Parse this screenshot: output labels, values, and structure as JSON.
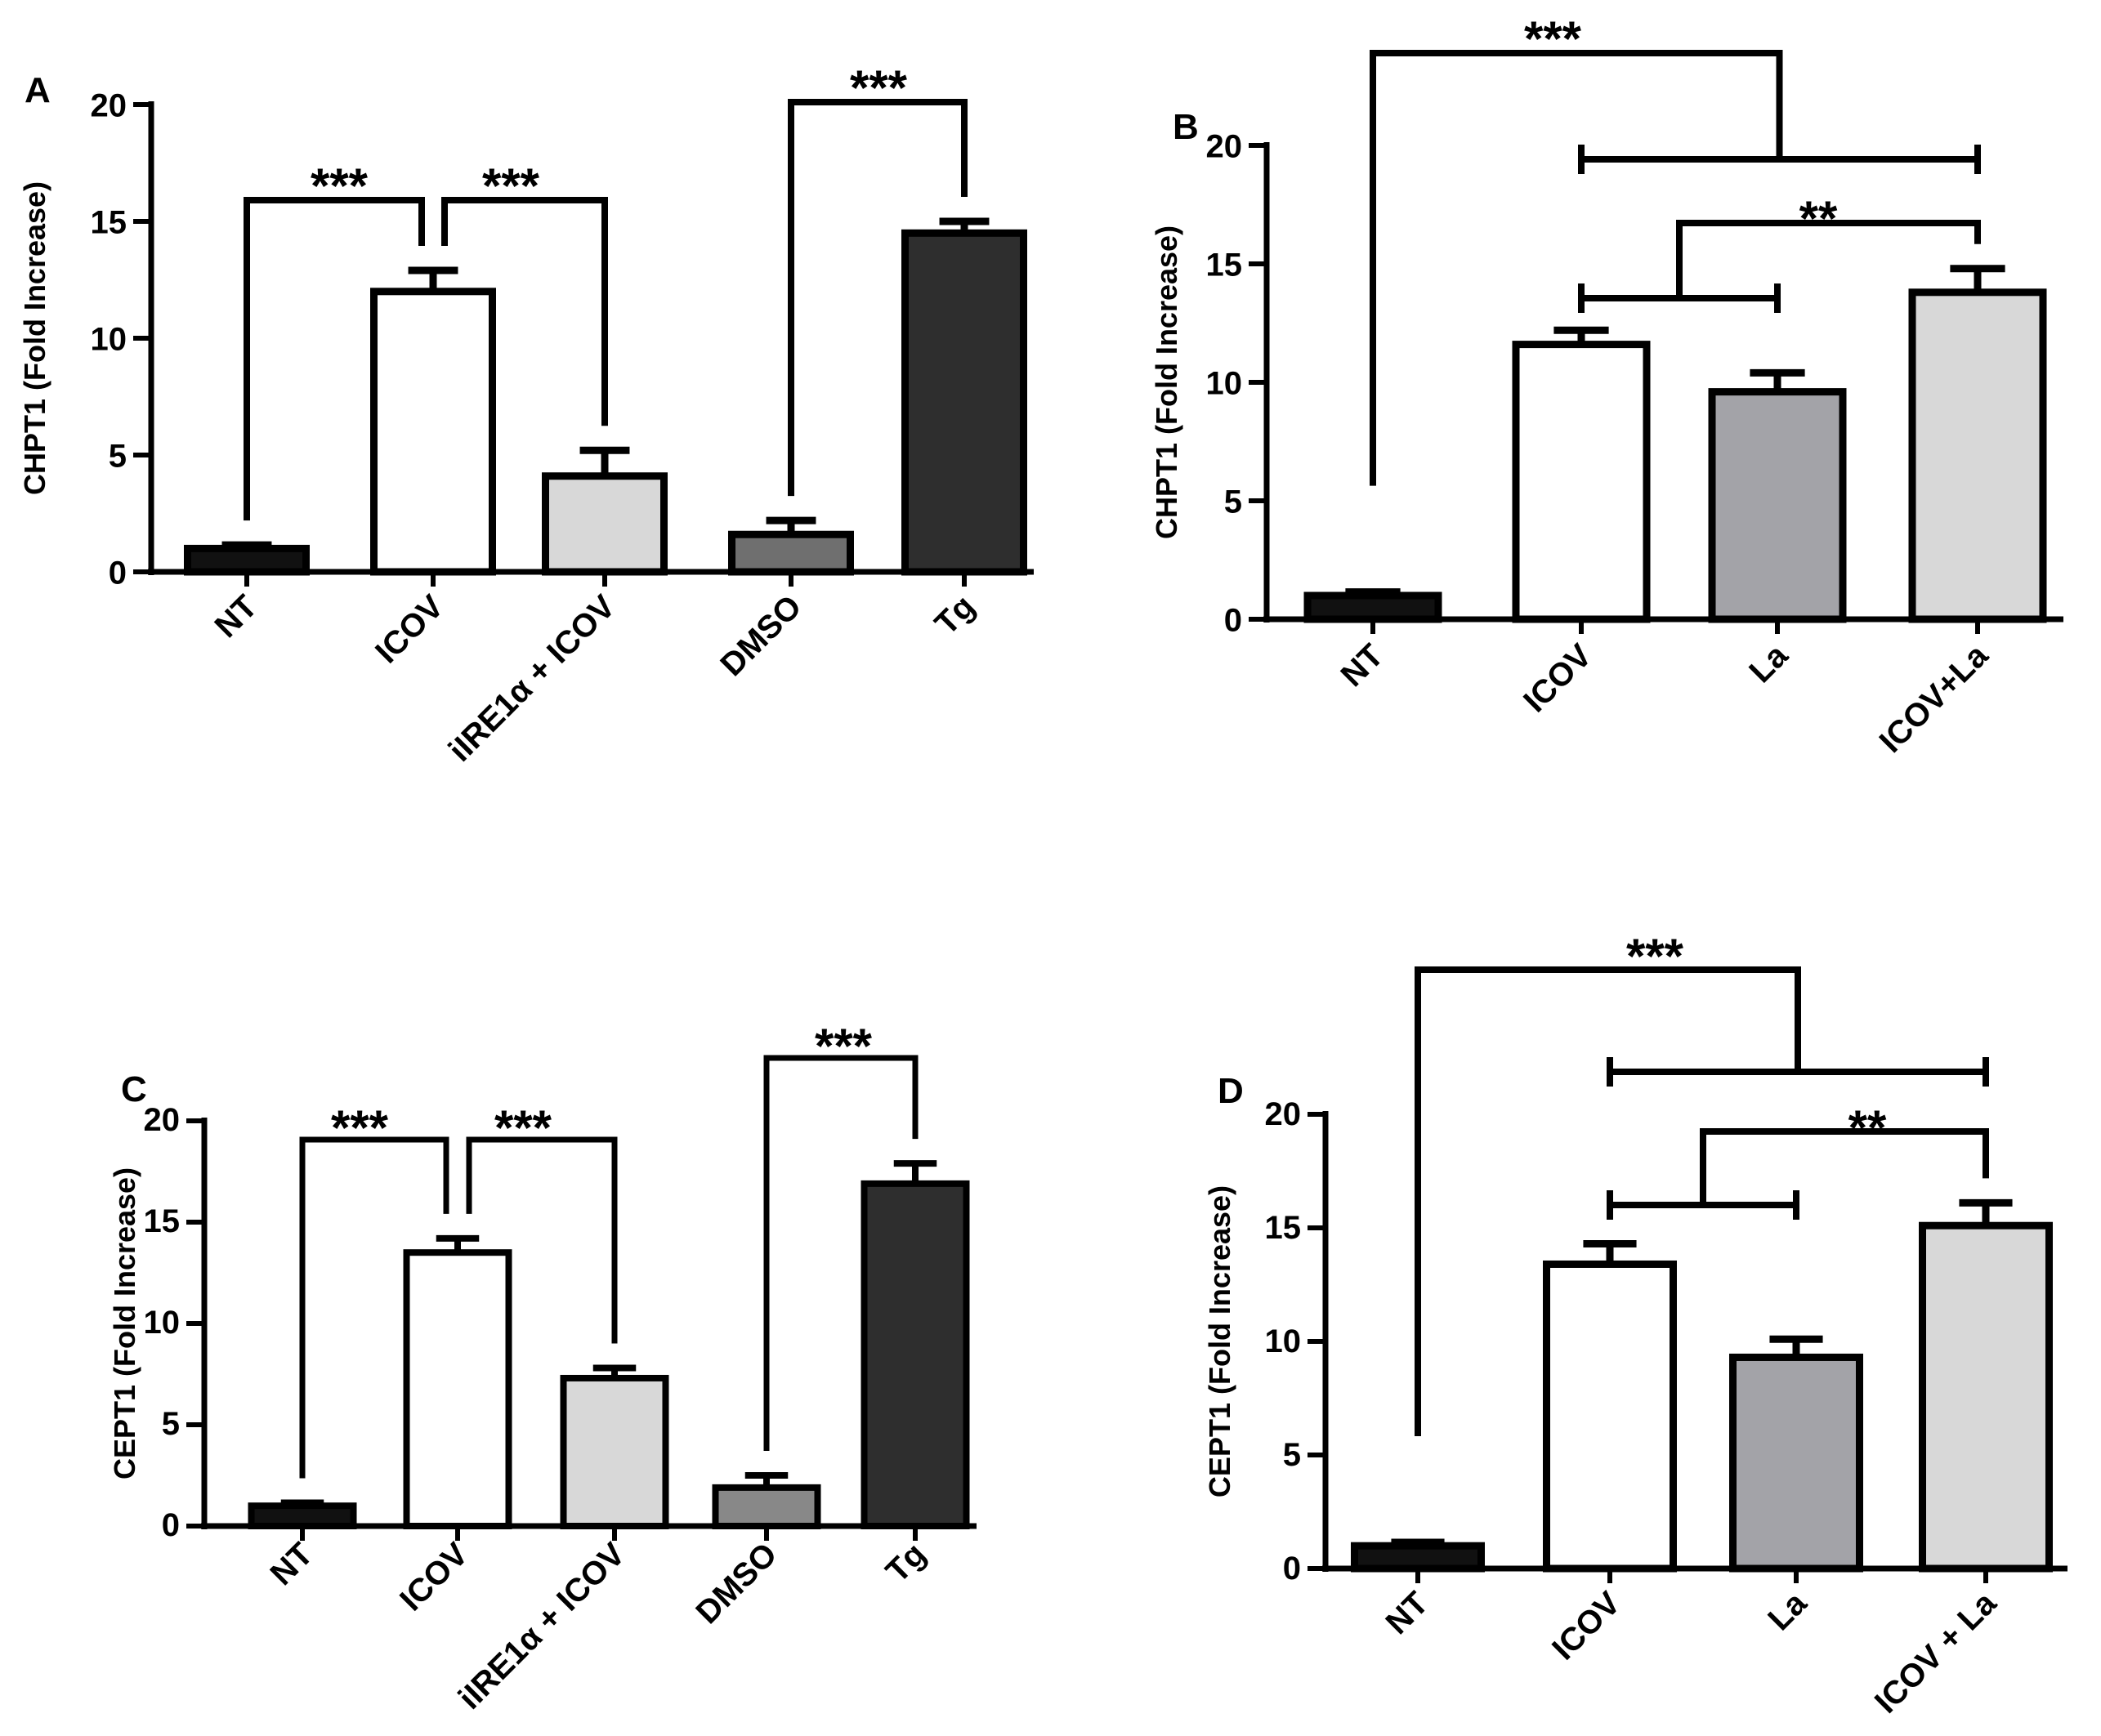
{
  "chart_data": [
    {
      "panel": "A",
      "type": "bar",
      "categories": [
        "NT",
        "ICOV",
        "iIRE1α + ICOV",
        "DMSO",
        "Tg"
      ],
      "values": [
        1.0,
        12.0,
        4.1,
        1.6,
        14.5
      ],
      "errors": [
        0.15,
        0.9,
        1.1,
        0.6,
        0.5
      ],
      "colors": [
        "#111111",
        "#ffffff",
        "#d8d8d8",
        "#6f6f6f",
        "#2e2e2e"
      ],
      "ylabel": "CHPT1 (Fold Increase)",
      "ylim": [
        0,
        20
      ],
      "yticks": [
        "0",
        "5",
        "10",
        "15",
        "20"
      ],
      "significance": [
        "***",
        "***",
        "***"
      ]
    },
    {
      "panel": "B",
      "type": "bar",
      "categories": [
        "NT",
        "ICOV",
        "La",
        "ICOV+La"
      ],
      "values": [
        1.0,
        11.6,
        9.6,
        13.8
      ],
      "errors": [
        0.15,
        0.6,
        0.8,
        1.0
      ],
      "colors": [
        "#111111",
        "#ffffff",
        "#a3a3a8",
        "#d8d8d8"
      ],
      "ylabel": "CHPT1 (Fold Increase)",
      "ylim": [
        0,
        20
      ],
      "yticks": [
        "0",
        "5",
        "10",
        "15",
        "20"
      ],
      "significance": [
        "***",
        "**"
      ]
    },
    {
      "panel": "C",
      "type": "bar",
      "categories": [
        "NT",
        "ICOV",
        "iIRE1α + ICOV",
        "DMSO",
        "Tg"
      ],
      "values": [
        1.0,
        13.5,
        7.3,
        1.9,
        16.9
      ],
      "errors": [
        0.15,
        0.7,
        0.5,
        0.6,
        1.0
      ],
      "colors": [
        "#111111",
        "#ffffff",
        "#d8d8d8",
        "#888888",
        "#2e2e2e"
      ],
      "ylabel": "CEPT1 (Fold Increase)",
      "ylim": [
        0,
        20
      ],
      "yticks": [
        "0",
        "5",
        "10",
        "15",
        "20"
      ],
      "significance": [
        "***",
        "***",
        "***"
      ]
    },
    {
      "panel": "D",
      "type": "bar",
      "categories": [
        "NT",
        "ICOV",
        "La",
        "ICOV + La"
      ],
      "values": [
        1.0,
        13.4,
        9.3,
        15.1
      ],
      "errors": [
        0.15,
        0.9,
        0.8,
        1.0
      ],
      "colors": [
        "#111111",
        "#ffffff",
        "#a3a3a8",
        "#d8d8d8"
      ],
      "ylabel": "CEPT1 (Fold Increase)",
      "ylim": [
        0,
        20
      ],
      "yticks": [
        "0",
        "5",
        "10",
        "15",
        "20"
      ],
      "significance": [
        "***",
        "**"
      ]
    }
  ]
}
